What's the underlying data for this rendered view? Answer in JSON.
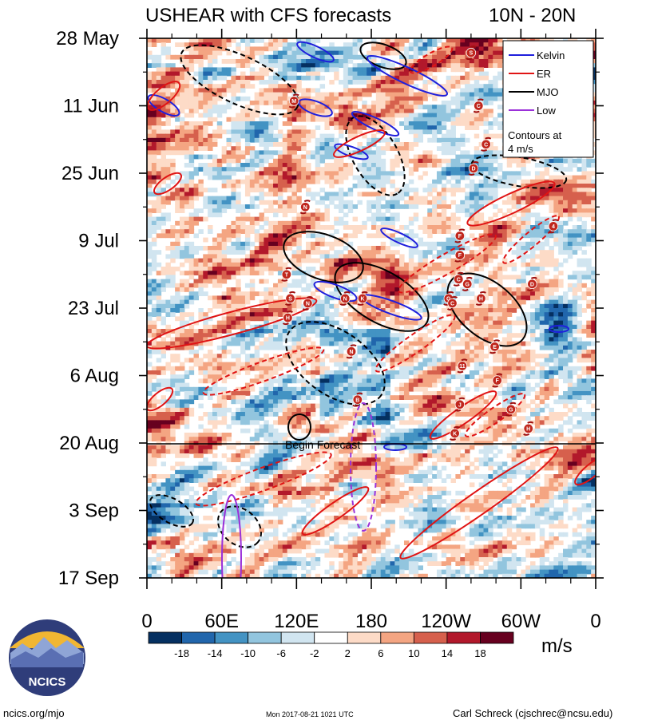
{
  "chart_data": {
    "type": "heatmap",
    "title_left": "USHEAR with CFS forecasts",
    "title_right": "10N - 20N",
    "x_tick_labels": [
      "0",
      "60E",
      "120E",
      "180",
      "120W",
      "60W",
      "0"
    ],
    "x_ticks_deg": [
      0,
      60,
      120,
      180,
      240,
      300,
      360
    ],
    "y_tick_labels": [
      "28 May",
      "11 Jun",
      "25 Jun",
      "9 Jul",
      "23 Jul",
      "6 Aug",
      "20 Aug",
      "3 Sep",
      "17 Sep"
    ],
    "y_ticks_day": [
      0,
      14,
      28,
      42,
      56,
      70,
      84,
      98,
      112
    ],
    "forecast_start_day": 84,
    "forecast_label": "Begin Forecast",
    "legend": [
      {
        "name": "Kelvin",
        "color": "#1f1fdc"
      },
      {
        "name": "ER",
        "color": "#e01414"
      },
      {
        "name": "MJO",
        "color": "#000000"
      },
      {
        "name": "Low",
        "color": "#9b30d9"
      }
    ],
    "legend_note": "Contours at 4 m/s",
    "colorbar": {
      "labels": [
        "-18",
        "-14",
        "-10",
        "-6",
        "-2",
        "2",
        "6",
        "10",
        "14",
        "18"
      ],
      "colors": [
        "#053061",
        "#2166ac",
        "#4393c3",
        "#92c5de",
        "#d1e5f0",
        "#ffffff",
        "#fddbc7",
        "#f4a582",
        "#d6604d",
        "#b2182b",
        "#67001f"
      ],
      "units": "m/s"
    },
    "storms": [
      {
        "label": "S",
        "lon": 260,
        "day": 3
      },
      {
        "label": "M",
        "lon": 118,
        "day": 13
      },
      {
        "label": "C",
        "lon": 266,
        "day": 14
      },
      {
        "label": "C",
        "lon": 272,
        "day": 22
      },
      {
        "label": "D",
        "lon": 262,
        "day": 27
      },
      {
        "label": "N",
        "lon": 127,
        "day": 35
      },
      {
        "label": "4",
        "lon": 326,
        "day": 39
      },
      {
        "label": "F",
        "lon": 251,
        "day": 41
      },
      {
        "label": "F",
        "lon": 251,
        "day": 45
      },
      {
        "label": "T",
        "lon": 112,
        "day": 49
      },
      {
        "label": "C",
        "lon": 250,
        "day": 50
      },
      {
        "label": "G",
        "lon": 257,
        "day": 51
      },
      {
        "label": "D",
        "lon": 309,
        "day": 51
      },
      {
        "label": "S",
        "lon": 115,
        "day": 54
      },
      {
        "label": "N",
        "lon": 159,
        "day": 54
      },
      {
        "label": "K",
        "lon": 173,
        "day": 54
      },
      {
        "label": "N",
        "lon": 129,
        "day": 55
      },
      {
        "label": "G",
        "lon": 242,
        "day": 54
      },
      {
        "label": "H",
        "lon": 268,
        "day": 54
      },
      {
        "label": "C",
        "lon": 245,
        "day": 55
      },
      {
        "label": "H",
        "lon": 113,
        "day": 58
      },
      {
        "label": "N",
        "lon": 164,
        "day": 65
      },
      {
        "label": "E",
        "lon": 279,
        "day": 64
      },
      {
        "label": "11",
        "lon": 253,
        "day": 68
      },
      {
        "label": "F",
        "lon": 281,
        "day": 71
      },
      {
        "label": "B",
        "lon": 169,
        "day": 75
      },
      {
        "label": "J",
        "lon": 251,
        "day": 76
      },
      {
        "label": "G",
        "lon": 292,
        "day": 77
      },
      {
        "label": "K",
        "lon": 247,
        "day": 82
      },
      {
        "label": "H",
        "lon": 306,
        "day": 81
      }
    ]
  },
  "footer": {
    "logo_text": "NCICS",
    "left": "ncics.org/mjo",
    "center": "Mon 2017-08-21 1021 UTC",
    "right": "Carl Schreck (cjschrec@ncsu.edu)"
  }
}
